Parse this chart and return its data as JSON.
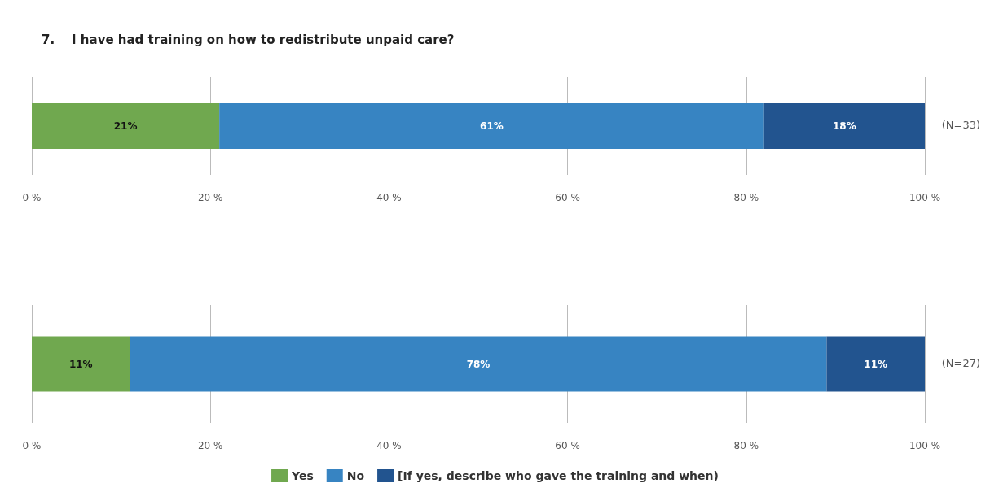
{
  "chart_data": [
    {
      "type": "bar",
      "orientation": "horizontal",
      "stacked": true,
      "title": "7.    I have had training on how to redistribute unpaid care?",
      "categories": [
        null
      ],
      "series": [
        {
          "color": "#70a84f",
          "values": [
            21
          ],
          "value_labels": [
            "21%"
          ]
        },
        {
          "color": "#3784c2",
          "values": [
            61
          ],
          "value_labels": [
            "61%"
          ]
        },
        {
          "color": "#22548f",
          "values": [
            18
          ],
          "value_labels": [
            "18%"
          ]
        }
      ],
      "xlim": [
        0,
        100
      ],
      "xticks": [
        {
          "value": 0,
          "label": "0 %"
        },
        {
          "value": 20,
          "label": "20 %"
        },
        {
          "value": 40,
          "label": "40 %"
        },
        {
          "value": 60,
          "label": "60 %"
        },
        {
          "value": 80,
          "label": "80 %"
        },
        {
          "value": 100,
          "label": "100 %"
        }
      ],
      "grid": "x",
      "legend": false,
      "annotations": [
        "(N=33)"
      ]
    },
    {
      "type": "bar",
      "orientation": "horizontal",
      "stacked": true,
      "categories": [
        null
      ],
      "series": [
        {
          "name": "Yes",
          "color": "#70a84f",
          "values": [
            11
          ],
          "value_labels": [
            "11%"
          ]
        },
        {
          "name": "No",
          "color": "#3784c2",
          "values": [
            78
          ],
          "value_labels": [
            "78%"
          ]
        },
        {
          "name": "[If yes, describe who gave the training and when)",
          "color": "#22548f",
          "values": [
            11
          ],
          "value_labels": [
            "11%"
          ]
        }
      ],
      "xlim": [
        0,
        100
      ],
      "xticks": [
        {
          "value": 0,
          "label": "0 %"
        },
        {
          "value": 20,
          "label": "20 %"
        },
        {
          "value": 40,
          "label": "40 %"
        },
        {
          "value": 60,
          "label": "60 %"
        },
        {
          "value": 80,
          "label": "80 %"
        },
        {
          "value": 100,
          "label": "100 %"
        }
      ],
      "grid": "x",
      "legend": "bottom",
      "annotations": [
        "(N=27)"
      ]
    }
  ]
}
